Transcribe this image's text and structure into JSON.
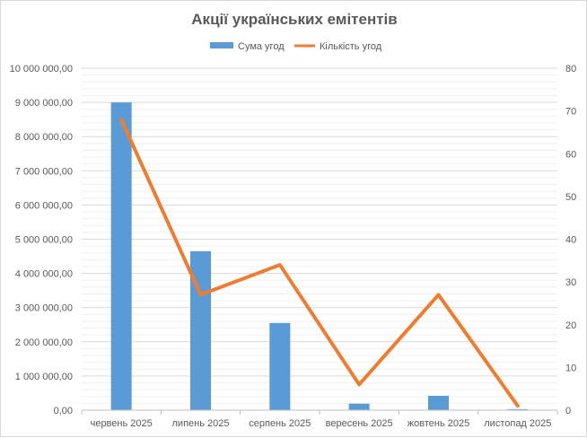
{
  "chart_data": {
    "type": "bar+line",
    "title": "Акції українських емітентів",
    "categories": [
      "червень 2025",
      "липень 2025",
      "серпень 2025",
      "вересень 2025",
      "жовтень 2025",
      "листопад 2025"
    ],
    "series": [
      {
        "name": "Сума угод",
        "type": "bar",
        "axis": "left",
        "color": "#5b9bd5",
        "values": [
          9000000,
          4650000,
          2550000,
          190000,
          420000,
          30000
        ]
      },
      {
        "name": "Кількість угод",
        "type": "line",
        "axis": "right",
        "color": "#ed7d31",
        "values": [
          68,
          27,
          34,
          6,
          27,
          1
        ]
      }
    ],
    "y_left": {
      "lim": [
        0,
        10000000
      ],
      "ticks": [
        "0,00",
        "1 000 000,00",
        "2 000 000,00",
        "3 000 000,00",
        "4 000 000,00",
        "5 000 000,00",
        "6 000 000,00",
        "7 000 000,00",
        "8 000 000,00",
        "9 000 000,00",
        "10 000 000,00"
      ]
    },
    "y_right": {
      "lim": [
        0,
        80
      ],
      "ticks": [
        "0",
        "10",
        "20",
        "30",
        "40",
        "50",
        "60",
        "70",
        "80"
      ]
    },
    "grid": true,
    "legend": "top"
  }
}
